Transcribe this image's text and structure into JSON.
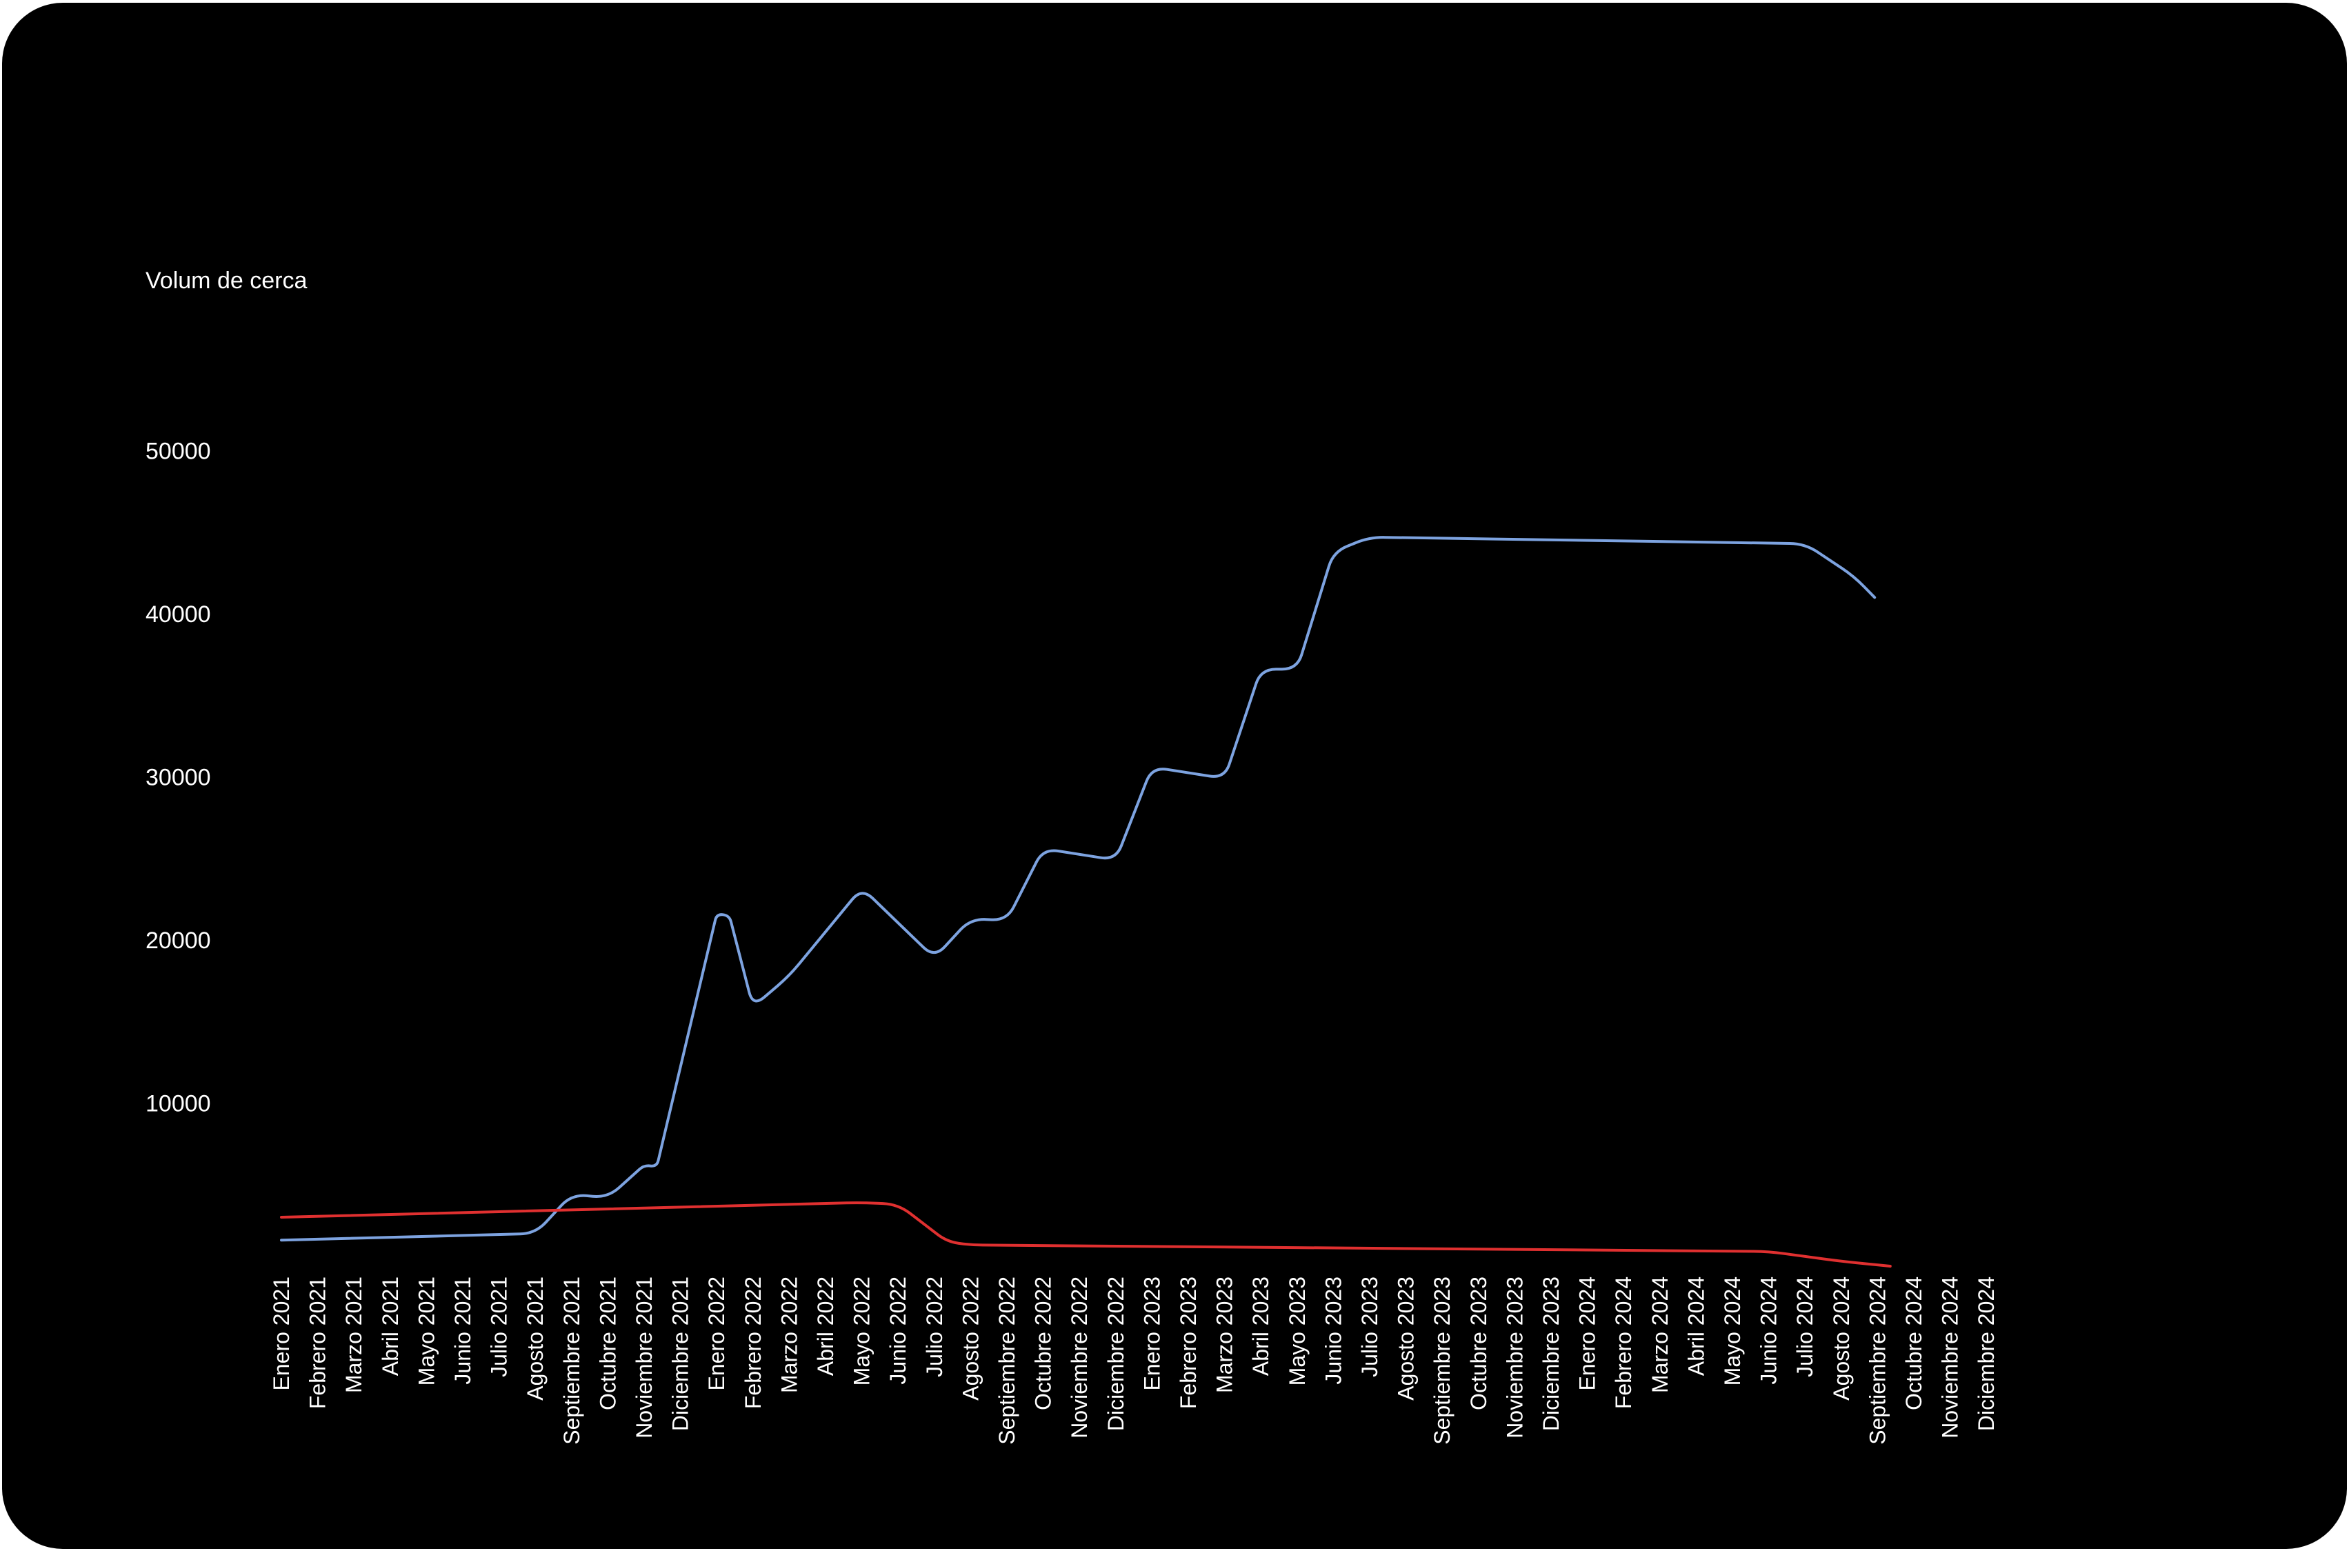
{
  "chart_data": {
    "type": "line",
    "ylabel": "Volum de cerca",
    "xlabel": "",
    "title": "",
    "ylim": [
      0,
      50000
    ],
    "yticks": [
      10000,
      20000,
      30000,
      40000,
      50000
    ],
    "grid": false,
    "legend": "none",
    "categories": [
      "Enero 2021",
      "Febrero 2021",
      "Marzo 2021",
      "Abril 2021",
      "Mayo 2021",
      "Junio 2021",
      "Julio 2021",
      "Agosto 2021",
      "Septiembre 2021",
      "Octubre 2021",
      "Noviembre 2021",
      "Diciembre 2021",
      "Enero 2022",
      "Febrero 2022",
      "Marzo 2022",
      "Abril 2022",
      "Mayo 2022",
      "Junio 2022",
      "Julio 2022",
      "Agosto 2022",
      "Septiembre 2022",
      "Octubre 2022",
      "Noviembre 2022",
      "Diciembre 2022",
      "Enero 2023",
      "Febrero 2023",
      "Marzo 2023",
      "Abril 2023",
      "Mayo 2023",
      "Junio 2023",
      "Julio 2023",
      "Agosto 2023",
      "Septiembre 2023",
      "Octubre 2023",
      "Noviembre 2023",
      "Diciembre 2023",
      "Enero 2024",
      "Febrero 2024",
      "Marzo 2024",
      "Abril 2024",
      "Mayo 2024",
      "Junio 2024",
      "Julio 2024",
      "Agosto 2024",
      "Septiembre 2024",
      "Octubre 2024",
      "Noviembre 2024",
      "Diciembre 2024"
    ],
    "series": [
      {
        "color": "#7da3e0",
        "points": [
          [
            "Enero 2021",
            1600
          ],
          [
            "Agosto 2021",
            2000
          ],
          [
            "Septiembre 2021",
            4400
          ],
          [
            "Octubre 2021",
            4200
          ],
          [
            "Noviembre 2021",
            6200
          ],
          [
            "Noviembre 2021+",
            6100
          ],
          [
            "Enero 2022",
            21600
          ],
          [
            "Enero 2022+",
            21500
          ],
          [
            "Febrero 2022",
            15900
          ],
          [
            "Marzo 2022",
            17800
          ],
          [
            "Mayo 2022",
            23200
          ],
          [
            "Julio 2022",
            18900
          ],
          [
            "Agosto 2022",
            21300
          ],
          [
            "Septiembre 2022",
            21200
          ],
          [
            "Octubre 2022",
            25600
          ],
          [
            "Diciembre 2022",
            24900
          ],
          [
            "Enero 2023",
            30600
          ],
          [
            "Marzo 2023",
            29900
          ],
          [
            "Abril 2023",
            36600
          ],
          [
            "Mayo 2023",
            36600
          ],
          [
            "Junio 2023",
            43800
          ],
          [
            "Julio 2023",
            44700
          ],
          [
            "Julio 2024",
            44300
          ],
          [
            "Agosto 2024+",
            42300
          ],
          [
            "Septiembre 2024-",
            41000
          ]
        ]
      },
      {
        "color": "#e03030",
        "points": [
          [
            "Enero 2021",
            3000
          ],
          [
            "Mayo 2022",
            3900
          ],
          [
            "Junio 2022",
            3800
          ],
          [
            "Julio 2022+",
            1500
          ],
          [
            "Agosto 2022",
            1300
          ],
          [
            "Junio 2024",
            900
          ],
          [
            "Agosto 2024",
            300
          ],
          [
            "Septiembre 2024+",
            0
          ]
        ]
      }
    ]
  }
}
